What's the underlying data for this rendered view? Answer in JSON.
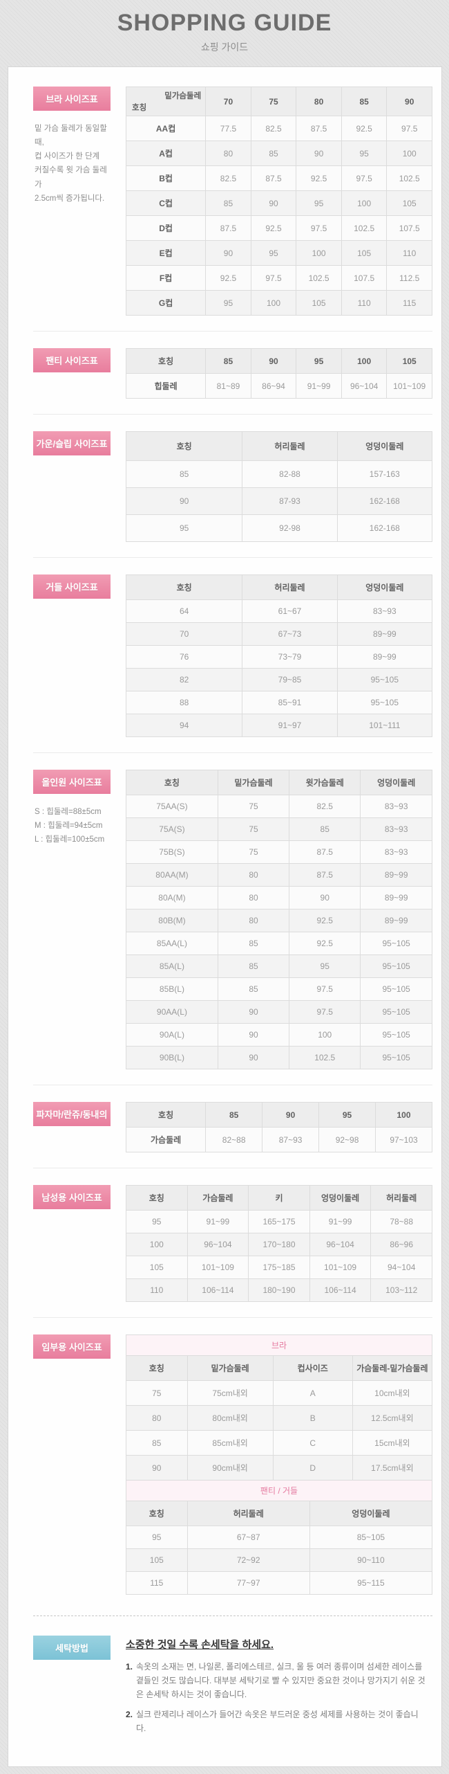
{
  "page": {
    "title": "SHOPPING GUIDE",
    "subtitle": "쇼핑 가이드"
  },
  "colors": {
    "accent_pink": "#ee8ba6",
    "accent_blue": "#8bcadb"
  },
  "sections": [
    {
      "id": "bra",
      "label": "브라 사이즈표",
      "note": "밑 가슴 둘레가 동일할 때,\n컵 사이즈가 한 단계\n커질수록 윗 가슴 둘레가\n2.5cm씩 증가됩니다.",
      "tables": [
        {
          "name": "bra-size-table",
          "corner": {
            "top": "밑가슴둘레",
            "bottom": "호칭"
          },
          "header": [
            "70",
            "75",
            "80",
            "85",
            "90"
          ],
          "widths": [
            26,
            14.8,
            14.8,
            14.8,
            14.8,
            14.8
          ],
          "strong_first": true,
          "rows": [
            [
              "AA컵",
              "77.5",
              "82.5",
              "87.5",
              "92.5",
              "97.5"
            ],
            [
              "A컵",
              "80",
              "85",
              "90",
              "95",
              "100"
            ],
            [
              "B컵",
              "82.5",
              "87.5",
              "92.5",
              "97.5",
              "102.5"
            ],
            [
              "C컵",
              "85",
              "90",
              "95",
              "100",
              "105"
            ],
            [
              "D컵",
              "87.5",
              "92.5",
              "97.5",
              "102.5",
              "107.5"
            ],
            [
              "E컵",
              "90",
              "95",
              "100",
              "105",
              "110"
            ],
            [
              "F컵",
              "92.5",
              "97.5",
              "102.5",
              "107.5",
              "112.5"
            ],
            [
              "G컵",
              "95",
              "100",
              "105",
              "110",
              "115"
            ]
          ]
        }
      ]
    },
    {
      "id": "panty",
      "label": "팬티 사이즈표",
      "note": "",
      "tables": [
        {
          "name": "panty-size-table",
          "header": [
            "호칭",
            "85",
            "90",
            "95",
            "100",
            "105"
          ],
          "widths": [
            26,
            14.8,
            14.8,
            14.8,
            14.8,
            14.8
          ],
          "strong_first": true,
          "rows": [
            [
              "힙둘레",
              "81~89",
              "86~94",
              "91~99",
              "96~104",
              "101~109"
            ]
          ]
        }
      ]
    },
    {
      "id": "gown-slip",
      "label": "가운/슬립 사이즈표",
      "note": "",
      "tables": [
        {
          "name": "gown-slip-size-table",
          "tall": true,
          "header": [
            "호칭",
            "허리둘레",
            "엉덩이둘레"
          ],
          "widths": [
            38,
            31,
            31
          ],
          "strong_first": false,
          "rows": [
            [
              "85",
              "82-88",
              "157-163"
            ],
            [
              "90",
              "87-93",
              "162-168"
            ],
            [
              "95",
              "92-98",
              "162-168"
            ]
          ]
        }
      ]
    },
    {
      "id": "girdle",
      "label": "거들 사이즈표",
      "note": "",
      "tables": [
        {
          "name": "girdle-size-table",
          "header": [
            "호칭",
            "허리둘레",
            "엉덩이둘레"
          ],
          "widths": [
            38,
            31,
            31
          ],
          "strong_first": false,
          "rows": [
            [
              "64",
              "61~67",
              "83~93"
            ],
            [
              "70",
              "67~73",
              "89~99"
            ],
            [
              "76",
              "73~79",
              "89~99"
            ],
            [
              "82",
              "79~85",
              "95~105"
            ],
            [
              "88",
              "85~91",
              "95~105"
            ],
            [
              "94",
              "91~97",
              "101~111"
            ]
          ]
        }
      ]
    },
    {
      "id": "all-in-one",
      "label": "올인원 사이즈표",
      "note": "S : 힙둘레=88±5cm\nM : 힙둘레=94±5cm\nL : 힙둘레=100±5cm",
      "tables": [
        {
          "name": "all-in-one-size-table",
          "header": [
            "호칭",
            "밑가슴둘레",
            "윗가슴둘레",
            "엉덩이둘레"
          ],
          "widths": [
            30,
            23.3,
            23.3,
            23.4
          ],
          "strong_first": false,
          "rows": [
            [
              "75AA(S)",
              "75",
              "82.5",
              "83~93"
            ],
            [
              "75A(S)",
              "75",
              "85",
              "83~93"
            ],
            [
              "75B(S)",
              "75",
              "87.5",
              "83~93"
            ],
            [
              "80AA(M)",
              "80",
              "87.5",
              "89~99"
            ],
            [
              "80A(M)",
              "80",
              "90",
              "89~99"
            ],
            [
              "80B(M)",
              "80",
              "92.5",
              "89~99"
            ],
            [
              "85AA(L)",
              "85",
              "92.5",
              "95~105"
            ],
            [
              "85A(L)",
              "85",
              "95",
              "95~105"
            ],
            [
              "85B(L)",
              "85",
              "97.5",
              "95~105"
            ],
            [
              "90AA(L)",
              "90",
              "97.5",
              "95~105"
            ],
            [
              "90A(L)",
              "90",
              "100",
              "95~105"
            ],
            [
              "90B(L)",
              "90",
              "102.5",
              "95~105"
            ]
          ]
        }
      ]
    },
    {
      "id": "pajama",
      "label": "파자마/란쥬/동내의",
      "note": "",
      "tables": [
        {
          "name": "pajama-size-table",
          "header": [
            "호칭",
            "85",
            "90",
            "95",
            "100"
          ],
          "widths": [
            26,
            18.5,
            18.5,
            18.5,
            18.5
          ],
          "strong_first": true,
          "rows": [
            [
              "가슴둘레",
              "82~88",
              "87~93",
              "92~98",
              "97~103"
            ]
          ]
        }
      ]
    },
    {
      "id": "men",
      "label": "남성용 사이즈표",
      "note": "",
      "tables": [
        {
          "name": "men-size-table",
          "header": [
            "호칭",
            "가슴둘레",
            "키",
            "엉덩이둘레",
            "허리둘레"
          ],
          "widths": [
            20,
            20,
            20,
            20,
            20
          ],
          "strong_first": false,
          "rows": [
            [
              "95",
              "91~99",
              "165~175",
              "91~99",
              "78~88"
            ],
            [
              "100",
              "96~104",
              "170~180",
              "96~104",
              "86~96"
            ],
            [
              "105",
              "101~109",
              "175~185",
              "101~109",
              "94~104"
            ],
            [
              "110",
              "106~114",
              "180~190",
              "106~114",
              "103~112"
            ]
          ]
        }
      ]
    },
    {
      "id": "maternity",
      "label": "임부용 사이즈표",
      "note": "",
      "tables": [
        {
          "name": "maternity-bra-size-table",
          "title": "브라",
          "header": [
            "호칭",
            "밑가슴둘레",
            "컵사이즈",
            "가슴둘레-밑가슴둘레"
          ],
          "widths": [
            20,
            28,
            26,
            26
          ],
          "strong_first": false,
          "rows": [
            [
              "75",
              "75cm내외",
              "A",
              "10cm내외"
            ],
            [
              "80",
              "80cm내외",
              "B",
              "12.5cm내외"
            ],
            [
              "85",
              "85cm내외",
              "C",
              "15cm내외"
            ],
            [
              "90",
              "90cm내외",
              "D",
              "17.5cm내외"
            ]
          ]
        },
        {
          "name": "maternity-panty-girdle-size-table",
          "title": "팬티 / 거들",
          "header": [
            "호칭",
            "허리둘레",
            "엉덩이둘레"
          ],
          "widths": [
            20,
            40,
            40
          ],
          "strong_first": false,
          "rows": [
            [
              "95",
              "67~87",
              "85~105"
            ],
            [
              "105",
              "72~92",
              "90~110"
            ],
            [
              "115",
              "77~97",
              "95~115"
            ]
          ]
        }
      ]
    }
  ],
  "washing": {
    "label": "세탁방법",
    "heading": "소중한 것일 수록 손세탁을 하세요.",
    "items": [
      {
        "num": "1.",
        "text": "속옷의 소재는 면, 나일론, 폴리에스테르, 실크, 울 등 여러 종류이며 섬세한 레이스를 곁들인 것도 많습니다. 대부분 세탁기로 빨 수 있지만 중요한 것이나 망가지기 쉬운 것은 손세탁 하시는 것이 좋습니다."
      },
      {
        "num": "2.",
        "text": "실크 란제리나 레이스가 들어간 속옷은 부드러운 중성 세제를 사용하는 것이 좋습니다."
      }
    ]
  }
}
